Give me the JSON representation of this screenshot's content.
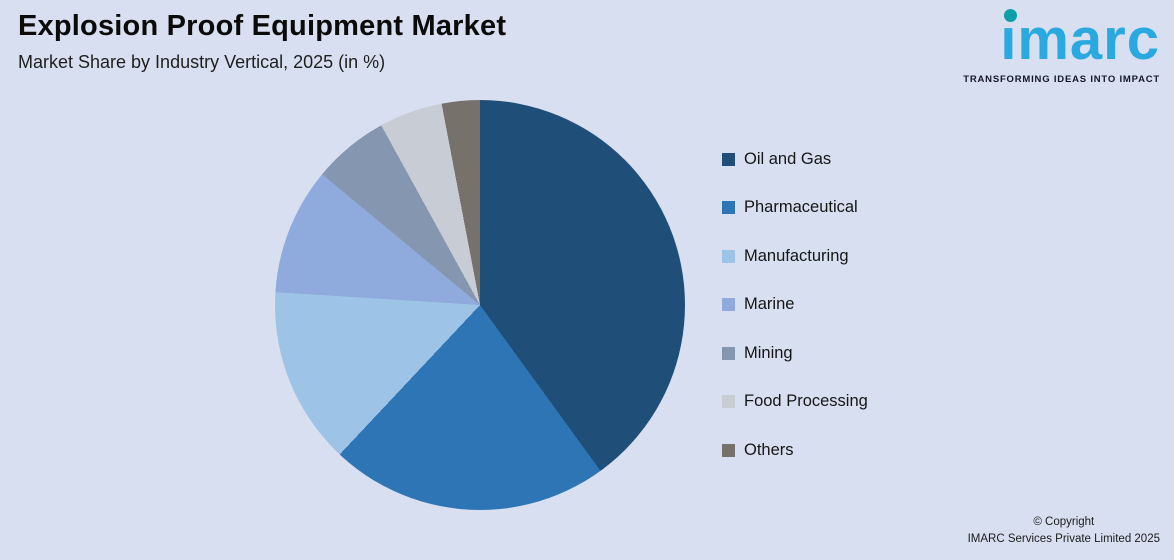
{
  "background": "#D8DFF0",
  "header": {
    "title": "Explosion Proof Equipment Market",
    "subtitle": "Market Share by Industry Vertical, 2025 (in %)"
  },
  "logo": {
    "text": "imarc",
    "tagline": "TRANSFORMING IDEAS INTO IMPACT",
    "brand_blue": "#29A9E0",
    "dot_teal": "#0E9EA8"
  },
  "chart_data": {
    "type": "pie",
    "title": "Explosion Proof Equipment Market",
    "subtitle": "Market Share by Industry Vertical, 2025 (in %)",
    "categories": [
      "Oil and Gas",
      "Pharmaceutical",
      "Manufacturing",
      "Marine",
      "Mining",
      "Food Processing",
      "Others"
    ],
    "values": [
      40,
      22,
      14,
      10,
      6,
      5,
      3
    ],
    "colors": [
      "#1F4E79",
      "#2E75B6",
      "#9DC3E6",
      "#8FAADC",
      "#8496B0",
      "#C7CCD5",
      "#77716C"
    ],
    "legend_position": "right",
    "start_angle_deg": 0,
    "direction": "clockwise"
  },
  "footer": {
    "copyright_line1": "© Copyright",
    "copyright_line2": "IMARC Services Private Limited 2025"
  }
}
